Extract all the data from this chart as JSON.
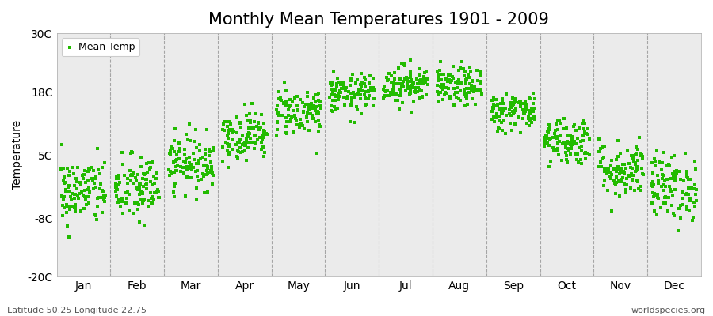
{
  "title": "Monthly Mean Temperatures 1901 - 2009",
  "ylabel": "Temperature",
  "xlabel_labels": [
    "Jan",
    "Feb",
    "Mar",
    "Apr",
    "May",
    "Jun",
    "Jul",
    "Aug",
    "Sep",
    "Oct",
    "Nov",
    "Dec"
  ],
  "ylim": [
    -20,
    30
  ],
  "yticks": [
    -20,
    -8,
    5,
    18,
    30
  ],
  "ytick_labels": [
    "-20C",
    "-8C",
    "5C",
    "18C",
    "30C"
  ],
  "legend_label": "Mean Temp",
  "dot_color": "#22BB00",
  "plot_bg_color": "#EBEBEB",
  "fig_bg_color": "#FFFFFF",
  "footer_left": "Latitude 50.25 Longitude 22.75",
  "footer_right": "worldspecies.org",
  "n_years": 109,
  "monthly_means": [
    -2.5,
    -2.0,
    3.5,
    9.0,
    14.0,
    17.5,
    19.5,
    19.0,
    14.0,
    8.0,
    2.0,
    -1.5
  ],
  "monthly_stds": [
    3.5,
    3.5,
    2.8,
    2.5,
    2.5,
    2.0,
    2.0,
    2.0,
    2.0,
    2.5,
    3.0,
    3.5
  ],
  "title_fontsize": 15,
  "axis_fontsize": 10,
  "legend_fontsize": 9,
  "footer_fontsize": 8,
  "vline_color": "#888888",
  "vline_positions": [
    1.5,
    2.5,
    3.5,
    4.5,
    5.5,
    6.5,
    7.5,
    8.5,
    9.5,
    10.5,
    11.5
  ]
}
